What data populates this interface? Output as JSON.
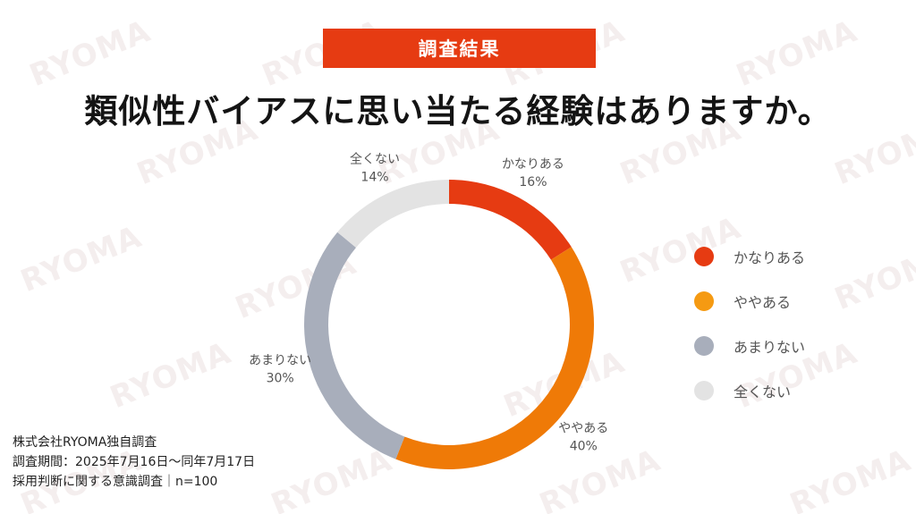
{
  "header": {
    "badge": "調査結果",
    "title": "類似性バイアスに思い当たる経験はありますか。"
  },
  "watermark": {
    "text": "RYOMA"
  },
  "chart_data": {
    "type": "pie",
    "categories": [
      "かなりある",
      "ややある",
      "あまりない",
      "全くない"
    ],
    "values": [
      16,
      40,
      30,
      14
    ],
    "value_labels": [
      "16%",
      "40%",
      "30%",
      "14%"
    ],
    "colors": [
      "#e63b12",
      "#ef7a07",
      "#a8aebb",
      "#e3e3e3"
    ],
    "legend_placement": "right",
    "donut": true
  },
  "legend": {
    "items": [
      {
        "label": "かなりある",
        "color": "#e63b12"
      },
      {
        "label": "ややある",
        "color": "#f59a12"
      },
      {
        "label": "あまりない",
        "color": "#a8aebb"
      },
      {
        "label": "全くない",
        "color": "#e3e3e3"
      }
    ]
  },
  "footnote": {
    "line1": "株式会社RYOMA独自調査",
    "line2": "調査期間：2025年7月16日〜同年7月17日",
    "line3": "採用判断に関する意識調査｜n=100"
  }
}
